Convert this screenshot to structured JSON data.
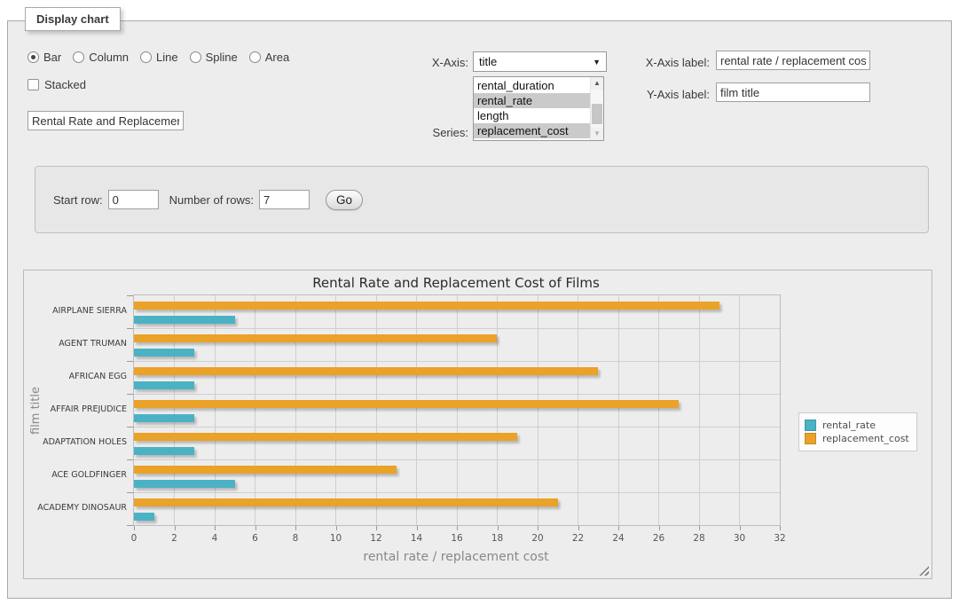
{
  "panel": {
    "legend": "Display chart"
  },
  "chart_type": {
    "options": [
      {
        "label": "Bar",
        "selected": true
      },
      {
        "label": "Column",
        "selected": false
      },
      {
        "label": "Line",
        "selected": false
      },
      {
        "label": "Spline",
        "selected": false
      },
      {
        "label": "Area",
        "selected": false
      }
    ]
  },
  "stacked": {
    "label": "Stacked",
    "checked": false
  },
  "title_input": {
    "value": "Rental Rate and Replacement Cost of Films"
  },
  "x_axis": {
    "label": "X-Axis:",
    "value": "title"
  },
  "series_select": {
    "label": "Series:",
    "options": [
      {
        "label": "rental_duration",
        "selected": false
      },
      {
        "label": "rental_rate",
        "selected": true
      },
      {
        "label": "length",
        "selected": false
      },
      {
        "label": "replacement_cost",
        "selected": true
      }
    ]
  },
  "x_axis_label": {
    "label": "X-Axis label:",
    "value": "rental rate / replacement cost"
  },
  "y_axis_label": {
    "label": "Y-Axis label:",
    "value": "film title"
  },
  "rows_bar": {
    "start_row_label": "Start row:",
    "start_row_value": "0",
    "num_rows_label": "Number of rows:",
    "num_rows_value": "7",
    "go_label": "Go"
  },
  "chart_data": {
    "type": "bar",
    "orientation": "horizontal",
    "title": "Rental Rate and Replacement Cost of Films",
    "xlabel": "rental rate / replacement cost",
    "ylabel": "film title",
    "categories": [
      "AIRPLANE SIERRA",
      "AGENT TRUMAN",
      "AFRICAN EGG",
      "AFFAIR PREJUDICE",
      "ADAPTATION HOLES",
      "ACE GOLDFINGER",
      "ACADEMY DINOSAUR"
    ],
    "series": [
      {
        "name": "rental_rate",
        "color": "#4bb2c5",
        "values": [
          4.99,
          2.99,
          2.99,
          2.99,
          2.99,
          4.99,
          0.99
        ]
      },
      {
        "name": "replacement_cost",
        "color": "#eaa228",
        "values": [
          28.99,
          17.99,
          22.99,
          26.99,
          18.99,
          12.99,
          20.99
        ]
      }
    ],
    "xlim": [
      0,
      32
    ],
    "xtick_step": 2,
    "grid": true,
    "legend_position": "right"
  }
}
